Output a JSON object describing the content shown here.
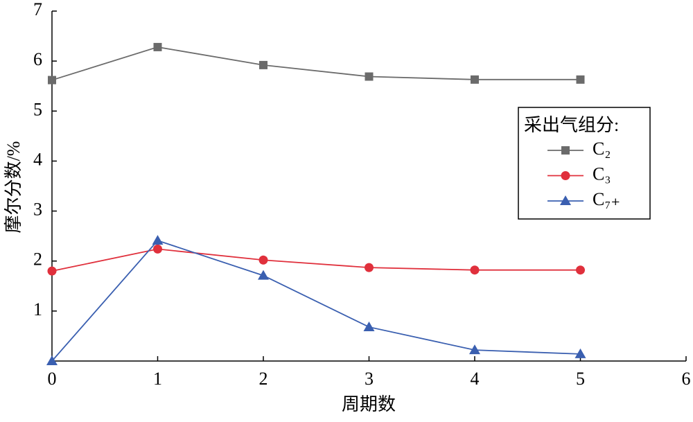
{
  "chart_data": {
    "type": "line",
    "x_label": "周期数",
    "y_label": "摩尔分数/%",
    "x": [
      0,
      1,
      2,
      3,
      4,
      5
    ],
    "xlim": [
      0,
      6
    ],
    "xticks": [
      0,
      1,
      2,
      3,
      4,
      5,
      6
    ],
    "ylim": [
      0,
      7
    ],
    "yticks": [
      1,
      2,
      3,
      4,
      5,
      6,
      7
    ],
    "legend_title": "采出气组分:",
    "legend_position": "upper right",
    "series": [
      {
        "name": "C₂",
        "color": "#6b6b6b",
        "marker": "square",
        "values": [
          5.62,
          6.28,
          5.92,
          5.69,
          5.63,
          5.63
        ]
      },
      {
        "name": "C₃",
        "color": "#e0303c",
        "marker": "circle",
        "values": [
          1.8,
          2.24,
          2.02,
          1.87,
          1.82,
          1.82
        ]
      },
      {
        "name": "C₇₊",
        "color": "#3a5fb0",
        "marker": "triangle",
        "values": [
          0,
          2.41,
          1.71,
          0.68,
          0.22,
          0.14
        ]
      }
    ]
  }
}
